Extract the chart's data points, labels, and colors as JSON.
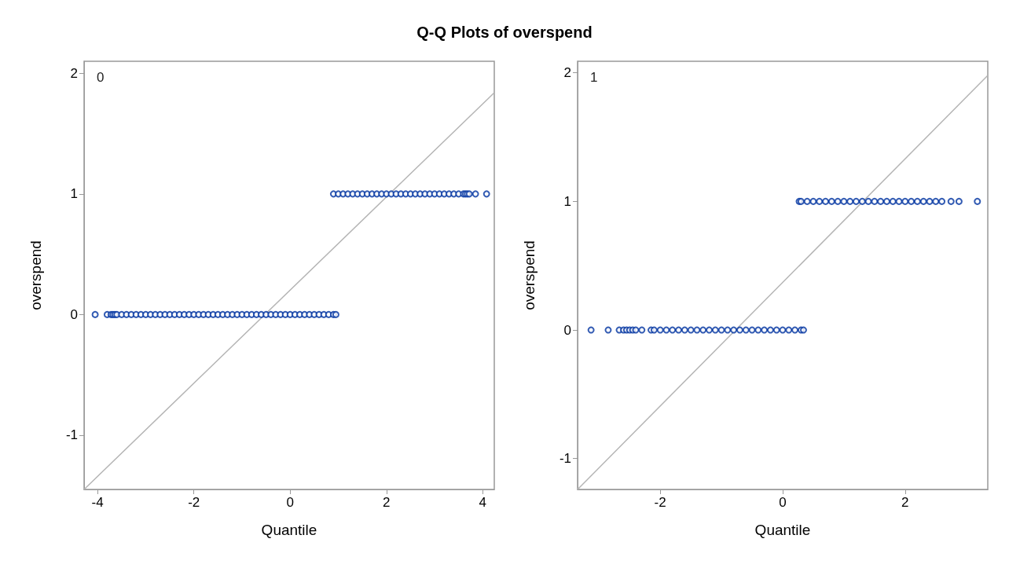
{
  "chart_data": [
    {
      "type": "scatter",
      "title": "Q-Q Plots of overspend",
      "xlabel": "Quantile",
      "ylabel": "overspend",
      "annotations": [
        "0"
      ],
      "xlim": [
        -4.28,
        4.24
      ],
      "ylim": [
        -1.45,
        2.1
      ],
      "xticks": [
        -4,
        -2,
        0,
        2,
        4
      ],
      "yticks": [
        -1,
        0,
        1,
        2
      ],
      "grid": false,
      "marker": "circle",
      "series": [
        {
          "color": "#0033a0",
          "x": [
            -4.05,
            -3.8,
            -3.72,
            -3.68,
            -3.64,
            -3.6,
            -3.5,
            -3.4,
            -3.3,
            -3.2,
            -3.1,
            -3.0,
            -2.9,
            -2.8,
            -2.7,
            -2.6,
            -2.5,
            -2.4,
            -2.3,
            -2.2,
            -2.1,
            -2.0,
            -1.9,
            -1.8,
            -1.7,
            -1.6,
            -1.5,
            -1.4,
            -1.3,
            -1.2,
            -1.1,
            -1.0,
            -0.9,
            -0.8,
            -0.7,
            -0.6,
            -0.5,
            -0.4,
            -0.3,
            -0.2,
            -0.1,
            0,
            0.1,
            0.2,
            0.3,
            0.4,
            0.5,
            0.6,
            0.7,
            0.8,
            0.9,
            0.95
          ],
          "values": [
            0,
            0,
            0,
            0,
            0,
            0,
            0,
            0,
            0,
            0,
            0,
            0,
            0,
            0,
            0,
            0,
            0,
            0,
            0,
            0,
            0,
            0,
            0,
            0,
            0,
            0,
            0,
            0,
            0,
            0,
            0,
            0,
            0,
            0,
            0,
            0,
            0,
            0,
            0,
            0,
            0,
            0,
            0,
            0,
            0,
            0,
            0,
            0,
            0,
            0,
            0,
            0
          ]
        },
        {
          "color": "#0033a0",
          "x": [
            0.9,
            1.0,
            1.1,
            1.2,
            1.3,
            1.4,
            1.5,
            1.6,
            1.7,
            1.8,
            1.9,
            2.0,
            2.1,
            2.2,
            2.3,
            2.4,
            2.5,
            2.6,
            2.7,
            2.8,
            2.9,
            3.0,
            3.1,
            3.2,
            3.3,
            3.4,
            3.5,
            3.6,
            3.64,
            3.68,
            3.72,
            3.85,
            4.08
          ],
          "values": [
            1,
            1,
            1,
            1,
            1,
            1,
            1,
            1,
            1,
            1,
            1,
            1,
            1,
            1,
            1,
            1,
            1,
            1,
            1,
            1,
            1,
            1,
            1,
            1,
            1,
            1,
            1,
            1,
            1,
            1,
            1,
            1,
            1
          ]
        },
        {
          "type": "line",
          "marker": "none",
          "color": "#b4b4b4",
          "x": [
            -4.28,
            4.24
          ],
          "values": [
            -1.45,
            1.84
          ]
        }
      ]
    },
    {
      "type": "scatter",
      "xlabel": "Quantile",
      "ylabel": "overspend",
      "annotations": [
        "1"
      ],
      "xlim": [
        -3.35,
        3.35
      ],
      "ylim": [
        -1.24,
        2.09
      ],
      "xticks": [
        -2,
        0,
        2
      ],
      "yticks": [
        -1,
        0,
        1,
        2
      ],
      "grid": false,
      "marker": "circle",
      "series": [
        {
          "color": "#0033a0",
          "x": [
            -3.13,
            -2.85,
            -2.67,
            -2.6,
            -2.55,
            -2.5,
            -2.45,
            -2.4,
            -2.3,
            -2.15,
            -2.1,
            -2.0,
            -1.9,
            -1.8,
            -1.7,
            -1.6,
            -1.5,
            -1.4,
            -1.3,
            -1.2,
            -1.1,
            -1.0,
            -0.9,
            -0.8,
            -0.7,
            -0.6,
            -0.5,
            -0.4,
            -0.3,
            -0.2,
            -0.1,
            0,
            0.1,
            0.2,
            0.3,
            0.34
          ],
          "values": [
            0,
            0,
            0,
            0,
            0,
            0,
            0,
            0,
            0,
            0,
            0,
            0,
            0,
            0,
            0,
            0,
            0,
            0,
            0,
            0,
            0,
            0,
            0,
            0,
            0,
            0,
            0,
            0,
            0,
            0,
            0,
            0,
            0,
            0,
            0,
            0
          ]
        },
        {
          "color": "#0033a0",
          "x": [
            0.27,
            0.3,
            0.4,
            0.5,
            0.6,
            0.7,
            0.8,
            0.9,
            1.0,
            1.1,
            1.2,
            1.3,
            1.4,
            1.5,
            1.6,
            1.7,
            1.8,
            1.9,
            2.0,
            2.1,
            2.2,
            2.3,
            2.4,
            2.5,
            2.6,
            2.75,
            2.88,
            3.18
          ],
          "values": [
            1,
            1,
            1,
            1,
            1,
            1,
            1,
            1,
            1,
            1,
            1,
            1,
            1,
            1,
            1,
            1,
            1,
            1,
            1,
            1,
            1,
            1,
            1,
            1,
            1,
            1,
            1,
            1
          ]
        },
        {
          "type": "line",
          "marker": "none",
          "color": "#b4b4b4",
          "x": [
            -3.35,
            3.35
          ],
          "values": [
            -1.24,
            1.98
          ]
        }
      ]
    }
  ]
}
